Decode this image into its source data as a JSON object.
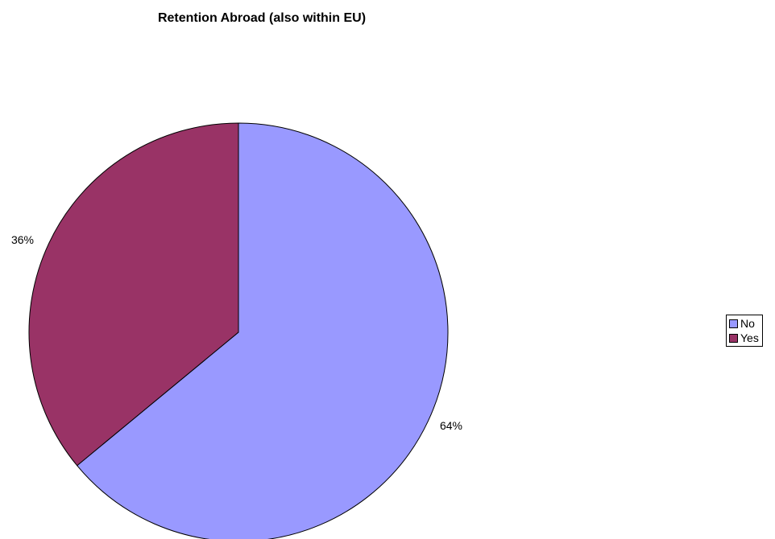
{
  "chart_data": {
    "type": "pie",
    "title": "Retention Abroad (also within EU)",
    "slices": [
      {
        "name": "No",
        "value": 64,
        "label": "64%",
        "color": "#9999FF"
      },
      {
        "name": "Yes",
        "value": 36,
        "label": "36%",
        "color": "#993366"
      }
    ],
    "legend_position": "right"
  }
}
